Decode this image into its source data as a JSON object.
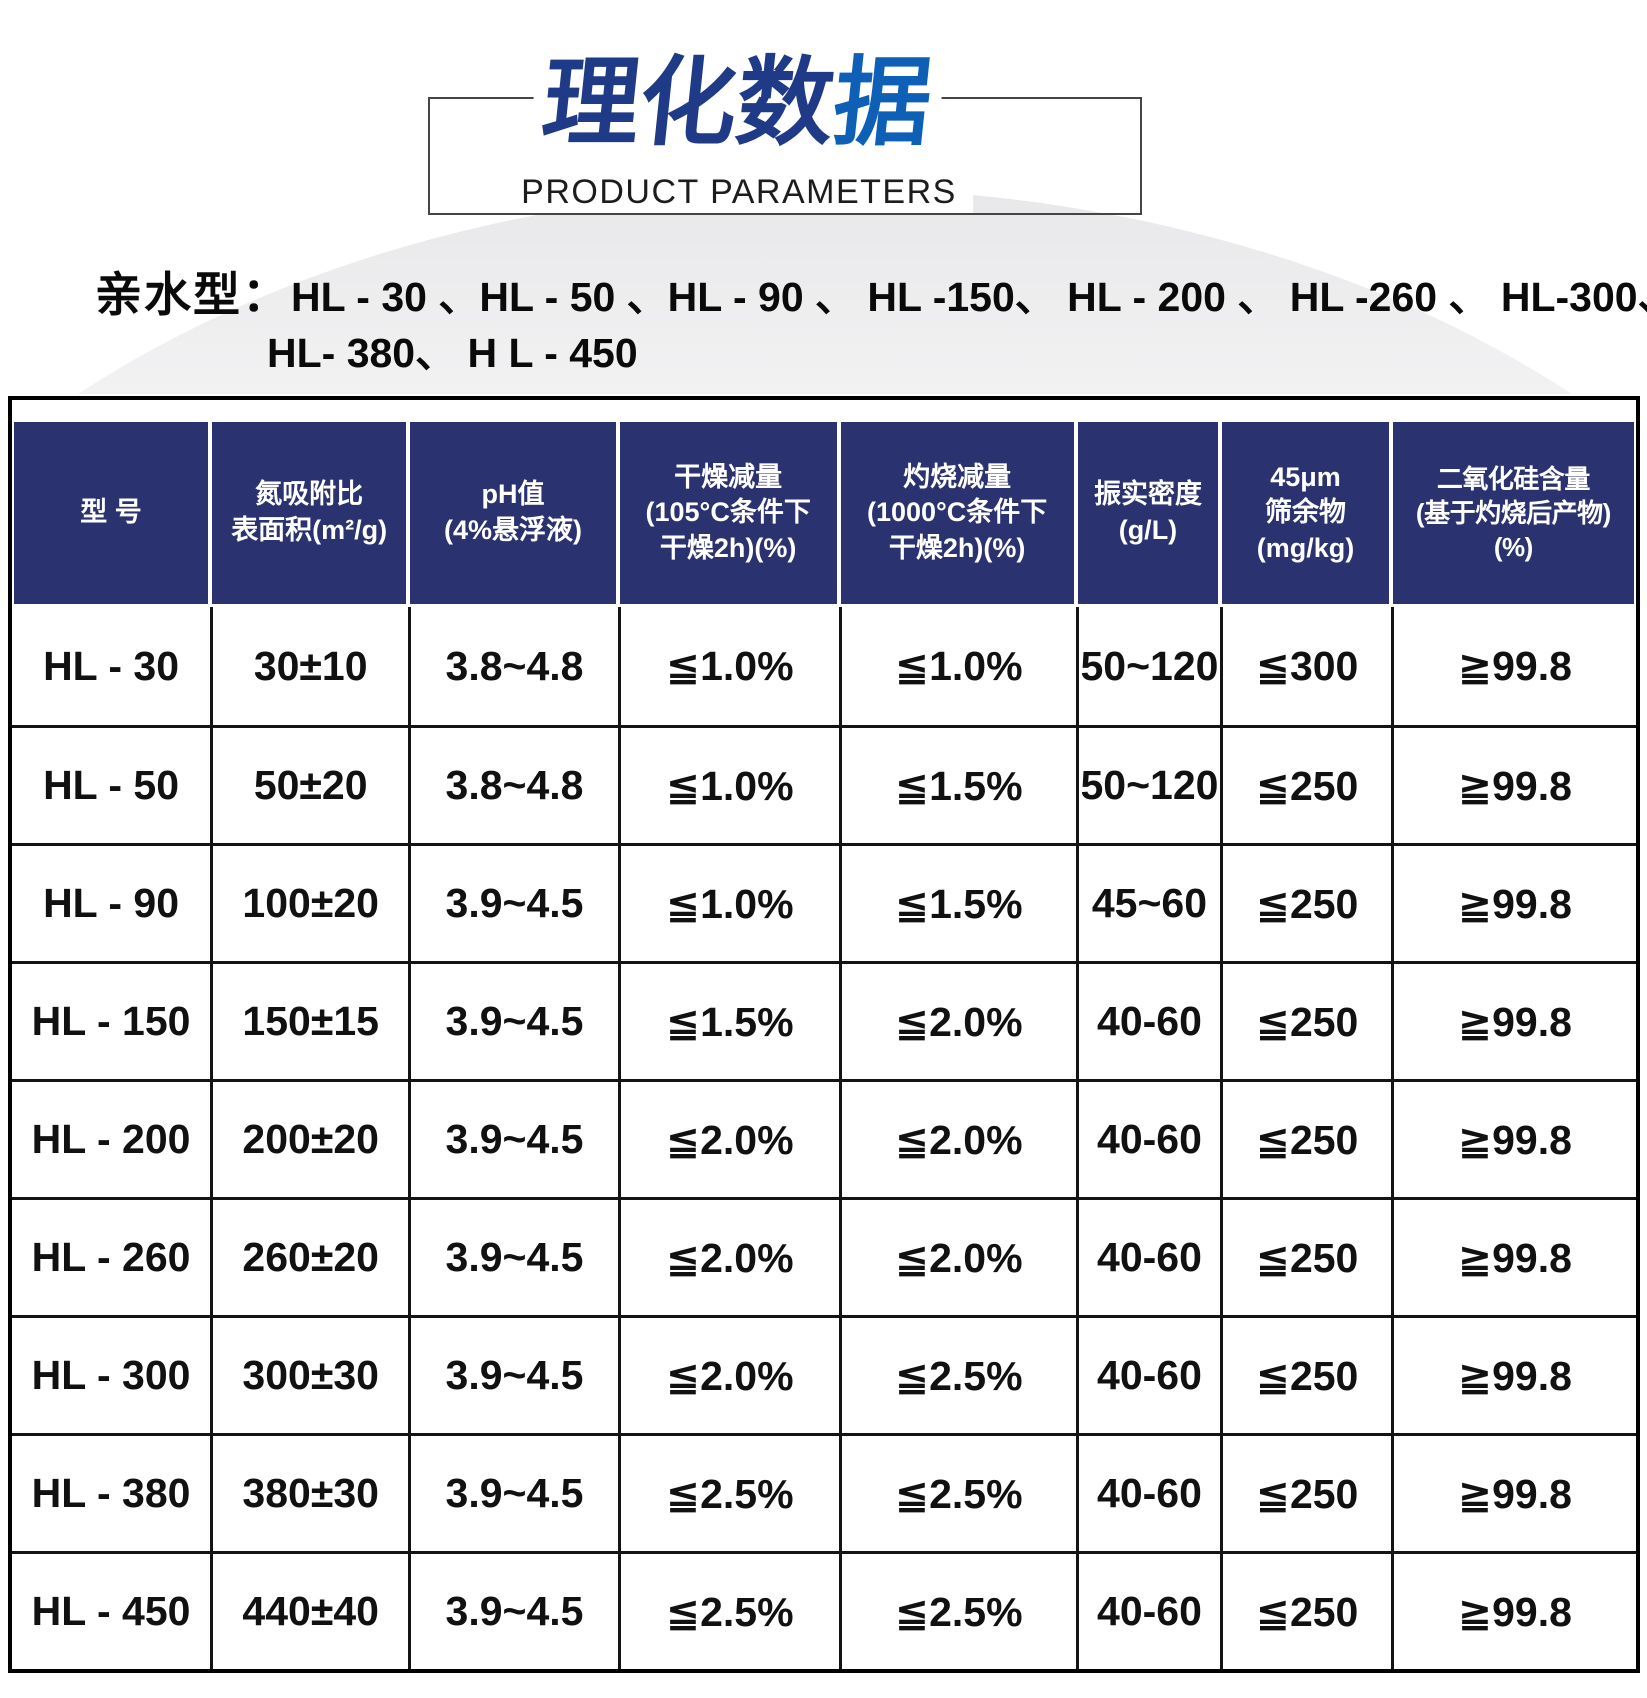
{
  "banner": {
    "title_part1": "理化数",
    "title_part2": "据",
    "subtitle": "PRODUCT PARAMETERS"
  },
  "intro": {
    "label": "亲水型：",
    "line1": "HL - 30 、HL - 50 、HL - 90 、 HL -150、 HL - 200 、 HL -260 、 HL-300、",
    "line2": "HL- 380、 H L - 450"
  },
  "table": {
    "headers": [
      "型 号",
      "氮吸附比\n表面积(m²/g)",
      "pH值\n(4%悬浮液)",
      "干燥减量\n(105°C条件下\n干燥2h)(%)",
      "灼烧减量\n(1000°C条件下\n干燥2h)(%)",
      "振实密度\n(g/L)",
      "45μm\n筛余物\n(mg/kg)",
      "二氧化硅含量\n(基于灼烧后产物)\n(%)"
    ],
    "rows": [
      [
        "HL - 30",
        "30±10",
        "3.8~4.8",
        "≦1.0%",
        "≦1.0%",
        "50~120",
        "≦300",
        "≧99.8"
      ],
      [
        "HL - 50",
        "50±20",
        "3.8~4.8",
        "≦1.0%",
        "≦1.5%",
        "50~120",
        "≦250",
        "≧99.8"
      ],
      [
        "HL - 90",
        "100±20",
        "3.9~4.5",
        "≦1.0%",
        "≦1.5%",
        "45~60",
        "≦250",
        "≧99.8"
      ],
      [
        "HL - 150",
        "150±15",
        "3.9~4.5",
        "≦1.5%",
        "≦2.0%",
        "40-60",
        "≦250",
        "≧99.8"
      ],
      [
        "HL - 200",
        "200±20",
        "3.9~4.5",
        "≦2.0%",
        "≦2.0%",
        "40-60",
        "≦250",
        "≧99.8"
      ],
      [
        "HL - 260",
        "260±20",
        "3.9~4.5",
        "≦2.0%",
        "≦2.0%",
        "40-60",
        "≦250",
        "≧99.8"
      ],
      [
        "HL - 300",
        "300±30",
        "3.9~4.5",
        "≦2.0%",
        "≦2.5%",
        "40-60",
        "≦250",
        "≧99.8"
      ],
      [
        "HL - 380",
        "380±30",
        "3.9~4.5",
        "≦2.5%",
        "≦2.5%",
        "40-60",
        "≦250",
        "≧99.8"
      ],
      [
        "HL - 450",
        "440±40",
        "3.9~4.5",
        "≦2.5%",
        "≦2.5%",
        "40-60",
        "≦250",
        "≧99.8"
      ]
    ]
  },
  "colors": {
    "header_bg": "#2b3270",
    "title_navy": "#1f3a86",
    "title_blue": "#0e5fb6",
    "grid_line": "#141414",
    "arc_gray": "#e8e8ea"
  }
}
